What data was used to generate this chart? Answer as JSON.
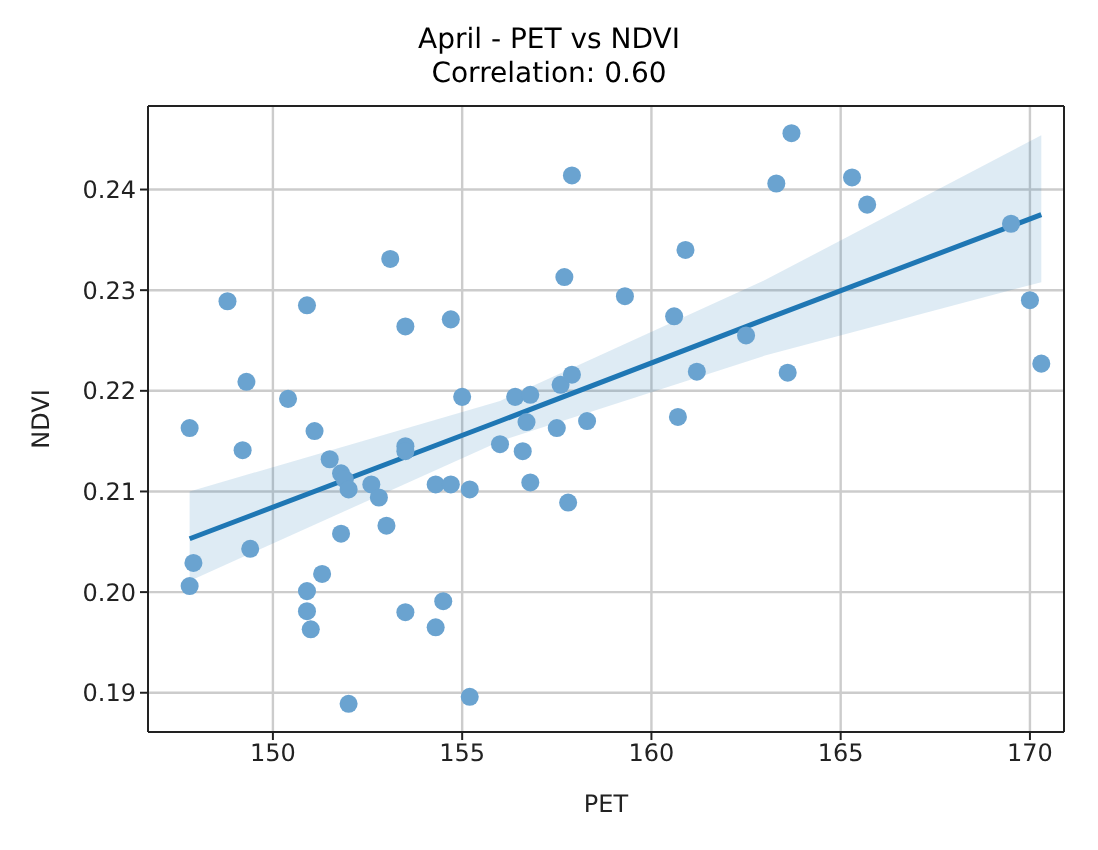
{
  "chart_data": {
    "type": "scatter",
    "title": "April - PET vs NDVI",
    "subtitle": "Correlation: 0.60",
    "xlabel": "PET",
    "ylabel": "NDVI",
    "xlim": [
      146.7,
      170.9
    ],
    "ylim": [
      0.1861,
      0.2483
    ],
    "xticks": [
      150,
      155,
      160,
      165,
      170
    ],
    "yticks": [
      0.19,
      {
        "value": 0.2,
        "label": "0.20"
      },
      0.21,
      0.22,
      0.23,
      0.24
    ],
    "grid": true,
    "series": [
      {
        "marker": "circle",
        "color": "#6aa3d0",
        "x": [
          147.8,
          148.8,
          149.3,
          150.4,
          150.9,
          151.1,
          153.1,
          153.5,
          154.7,
          155.0,
          156.4,
          156.8,
          156.7,
          157.6,
          157.9,
          157.7,
          157.9,
          158.3,
          157.5,
          163.7,
          163.3,
          165.3,
          165.7,
          160.9,
          159.3,
          160.6,
          162.5,
          161.2,
          163.6,
          160.7,
          169.5,
          170.0,
          170.3,
          157.8,
          149.2,
          151.5,
          151.8,
          151.9,
          152.0,
          152.6,
          152.8,
          153.0,
          153.5,
          153.5,
          154.3,
          154.7,
          155.2,
          156.0,
          156.6,
          156.8,
          147.9,
          147.8,
          149.4,
          151.8,
          151.3,
          150.9,
          150.9,
          151.0,
          153.5,
          154.5,
          154.3,
          152.0,
          155.2
        ],
        "values": [
          0.2163,
          0.2289,
          0.2209,
          0.2192,
          0.2285,
          0.216,
          0.2331,
          0.2264,
          0.2271,
          0.2194,
          0.2194,
          0.2196,
          0.2169,
          0.2206,
          0.2216,
          0.2313,
          0.2414,
          0.217,
          0.2163,
          0.2456,
          0.2406,
          0.2412,
          0.2385,
          0.234,
          0.2294,
          0.2274,
          0.2255,
          0.2219,
          0.2218,
          0.2174,
          0.2366,
          0.229,
          0.2227,
          0.2089,
          0.2141,
          0.2132,
          0.2118,
          0.2112,
          0.2102,
          0.2107,
          0.2094,
          0.2066,
          0.2145,
          0.214,
          0.2107,
          0.2107,
          0.2102,
          0.2147,
          0.214,
          0.2109,
          0.2029,
          0.2006,
          0.2043,
          0.2058,
          0.2018,
          0.2001,
          0.1981,
          0.1963,
          0.198,
          0.1991,
          0.1965,
          0.1889,
          0.1896
        ]
      },
      {
        "type": "line",
        "color": "#1f77b4",
        "x": [
          147.8,
          156,
          163,
          170.3
        ],
        "values": [
          0.2053,
          0.217,
          0.2271,
          0.2375
        ],
        "lower": [
          0.2011,
          0.215,
          0.2235,
          0.2308
        ],
        "upper": [
          0.21,
          0.219,
          0.231,
          0.2454
        ]
      }
    ]
  }
}
